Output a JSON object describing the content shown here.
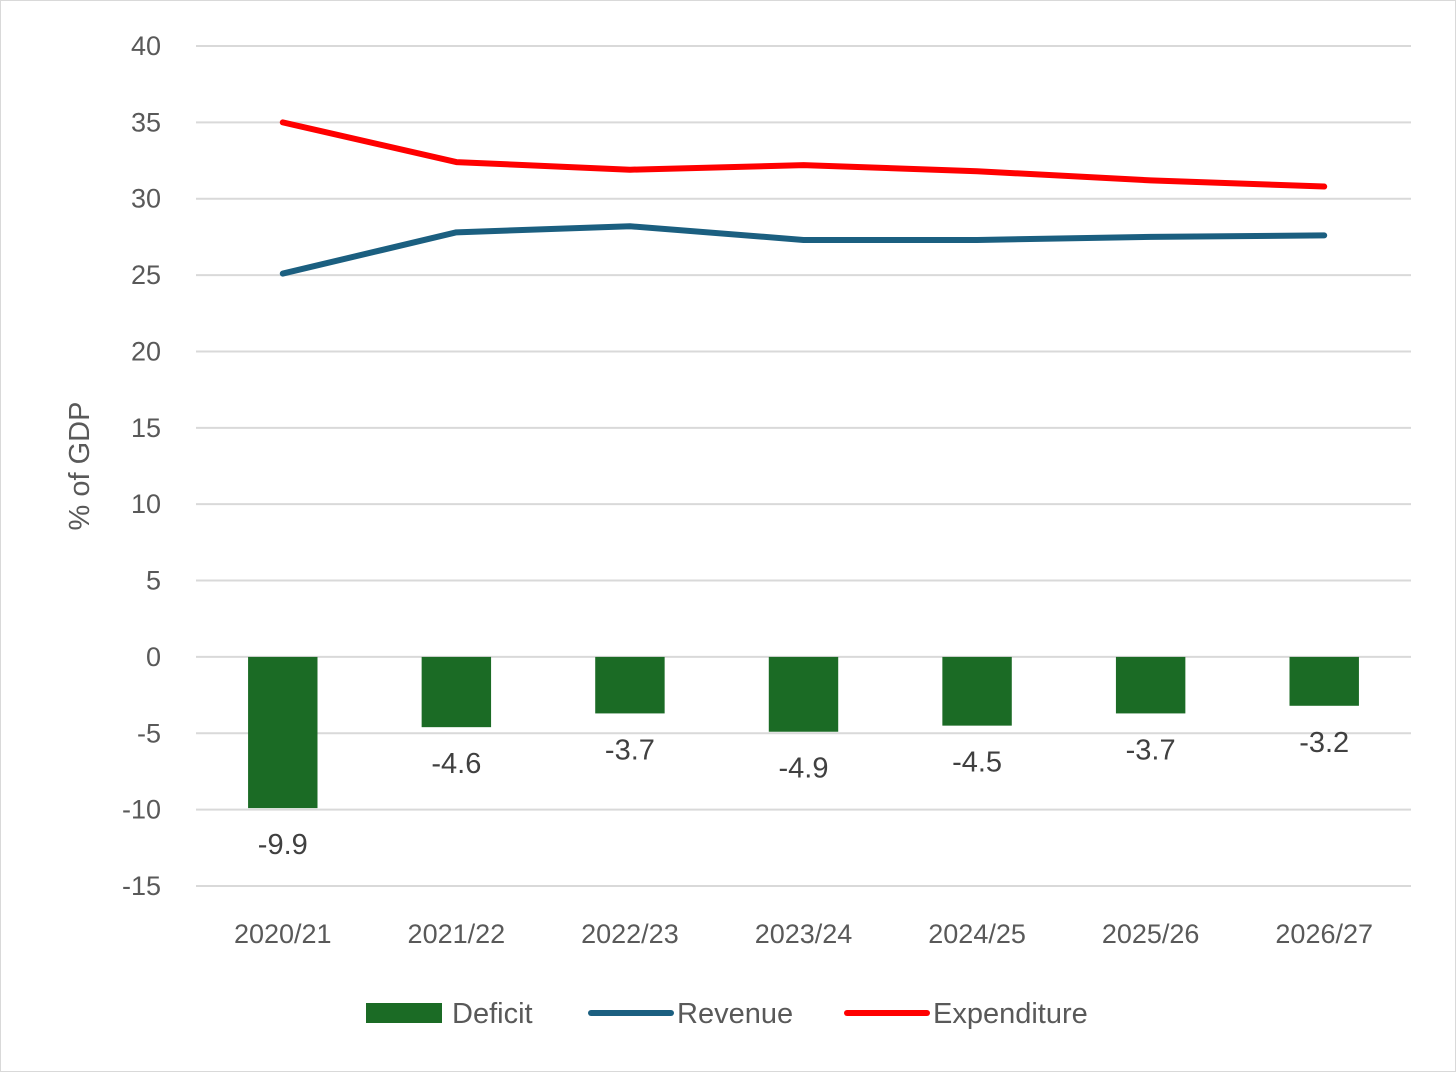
{
  "chart_data": {
    "type": "bar+line",
    "categories": [
      "2020/21",
      "2021/22",
      "2022/23",
      "2023/24",
      "2024/25",
      "2025/26",
      "2026/27"
    ],
    "series": [
      {
        "name": "Deficit",
        "kind": "bar",
        "color": "#1b6b25",
        "values": [
          -9.9,
          -4.6,
          -3.7,
          -4.9,
          -4.5,
          -3.7,
          -3.2
        ],
        "labels": [
          "-9.9",
          "-4.6",
          "-3.7",
          "-4.9",
          "-4.5",
          "-3.7",
          "-3.2"
        ]
      },
      {
        "name": "Revenue",
        "kind": "line",
        "color": "#1b5f80",
        "values": [
          25.1,
          27.8,
          28.2,
          27.3,
          27.3,
          27.5,
          27.6
        ]
      },
      {
        "name": "Expenditure",
        "kind": "line",
        "color": "#ff0000",
        "values": [
          35.0,
          32.4,
          31.9,
          32.2,
          31.8,
          31.2,
          30.8
        ]
      }
    ],
    "ylabel": "% of GDP",
    "ylim": [
      -15,
      40
    ],
    "yticks": [
      "40",
      "35",
      "30",
      "25",
      "20",
      "15",
      "10",
      "5",
      "0",
      "-5",
      "-10",
      "-15"
    ],
    "grid": true,
    "legend_position": "bottom"
  }
}
